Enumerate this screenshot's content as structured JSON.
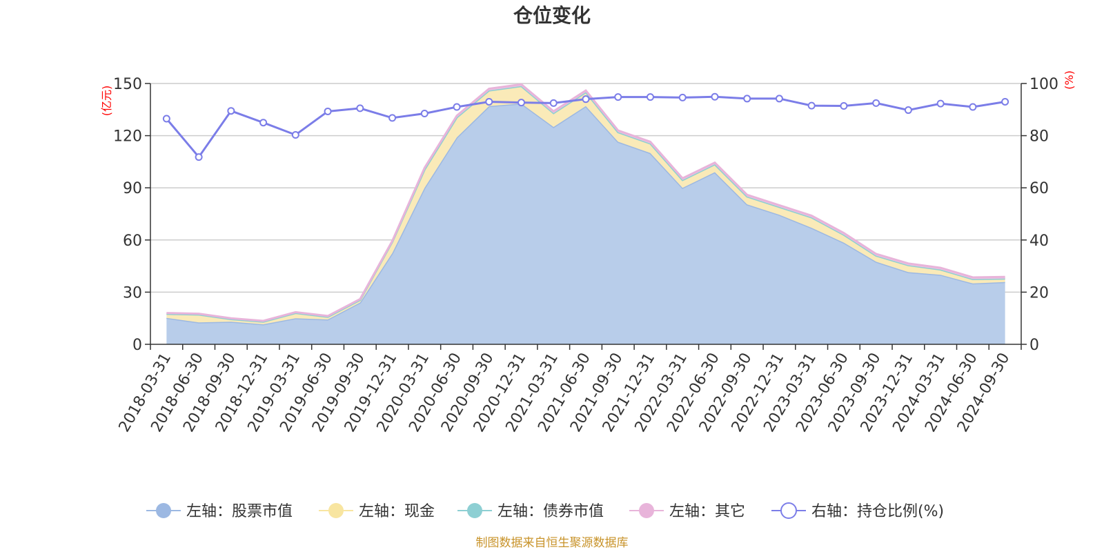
{
  "title": "仓位变化",
  "left_unit": "(亿元)",
  "right_unit": "(%)",
  "source": "制图数据来自恒生聚源数据库",
  "chart_data": {
    "type": "area",
    "title": "仓位变化",
    "categories": [
      "2018-03-31",
      "2018-06-30",
      "2018-09-30",
      "2018-12-31",
      "2019-03-31",
      "2019-06-30",
      "2019-09-30",
      "2019-12-31",
      "2020-03-31",
      "2020-06-30",
      "2020-09-30",
      "2020-12-31",
      "2021-03-31",
      "2021-06-30",
      "2021-09-30",
      "2021-12-31",
      "2022-03-31",
      "2022-06-30",
      "2022-09-30",
      "2022-12-31",
      "2023-03-31",
      "2023-06-30",
      "2023-09-30",
      "2023-12-31",
      "2024-03-31",
      "2024-06-30",
      "2024-09-30"
    ],
    "left_axis": {
      "ylim": [
        0,
        150
      ],
      "ticks": [
        0,
        30,
        60,
        90,
        120,
        150
      ]
    },
    "right_axis": {
      "ylim": [
        0,
        100
      ],
      "ticks": [
        0,
        20,
        40,
        60,
        80,
        100
      ]
    },
    "grid": true,
    "legend_position": "bottom",
    "series": [
      {
        "name": "左轴：股票市值",
        "axis": "left",
        "stacked": true,
        "color": "#9cb8e2",
        "fill": "#b8cdea",
        "values": [
          15.2,
          12.6,
          13.0,
          11.5,
          15.0,
          14.3,
          24.0,
          52.5,
          90.0,
          119.0,
          137.0,
          138.5,
          125.0,
          137.0,
          116.5,
          110.0,
          90.0,
          99.0,
          80.5,
          74.5,
          67.0,
          58.5,
          47.5,
          41.5,
          40.0,
          35.0,
          35.8
        ]
      },
      {
        "name": "左轴：现金",
        "axis": "left",
        "stacked": true,
        "color": "#f8e5a0",
        "fill": "#faeab8",
        "values": [
          2.3,
          4.5,
          1.5,
          1.5,
          3.0,
          1.5,
          1.5,
          6.5,
          10.5,
          11.5,
          9.0,
          10.0,
          8.0,
          8.0,
          5.5,
          5.5,
          4.5,
          4.5,
          4.5,
          4.5,
          6.0,
          4.5,
          3.5,
          4.0,
          3.0,
          2.5,
          2.0
        ]
      },
      {
        "name": "左轴：债券市值",
        "axis": "left",
        "stacked": true,
        "color": "#8dcfd3",
        "fill": "#8dcfd3",
        "values": [
          0,
          0,
          0,
          0,
          0,
          0,
          0,
          0,
          0,
          0,
          0,
          0,
          0,
          0,
          0,
          0,
          0,
          0,
          0,
          0,
          0,
          0,
          0,
          0,
          0,
          0,
          0
        ]
      },
      {
        "name": "左轴：其它",
        "axis": "left",
        "stacked": true,
        "color": "#e8b4da",
        "fill": "#ecc4e2",
        "values": [
          0.5,
          0.5,
          0.5,
          0.5,
          0.5,
          0.5,
          0.5,
          0.5,
          1.0,
          1.0,
          1.0,
          1.0,
          1.0,
          1.0,
          1.0,
          1.0,
          1.0,
          1.0,
          1.0,
          1.0,
          1.0,
          1.0,
          1.0,
          1.0,
          1.0,
          1.0,
          1.0
        ]
      },
      {
        "name": "右轴：持仓比例(%)",
        "axis": "right",
        "type": "line",
        "color": "#7b7de8",
        "values": [
          86.5,
          71.8,
          89.5,
          85.0,
          80.3,
          89.3,
          90.5,
          86.8,
          88.5,
          91.0,
          93.0,
          92.7,
          92.5,
          94.0,
          94.8,
          94.8,
          94.6,
          94.9,
          94.2,
          94.2,
          91.5,
          91.4,
          92.5,
          89.8,
          92.3,
          91.0,
          93.0
        ]
      }
    ]
  }
}
